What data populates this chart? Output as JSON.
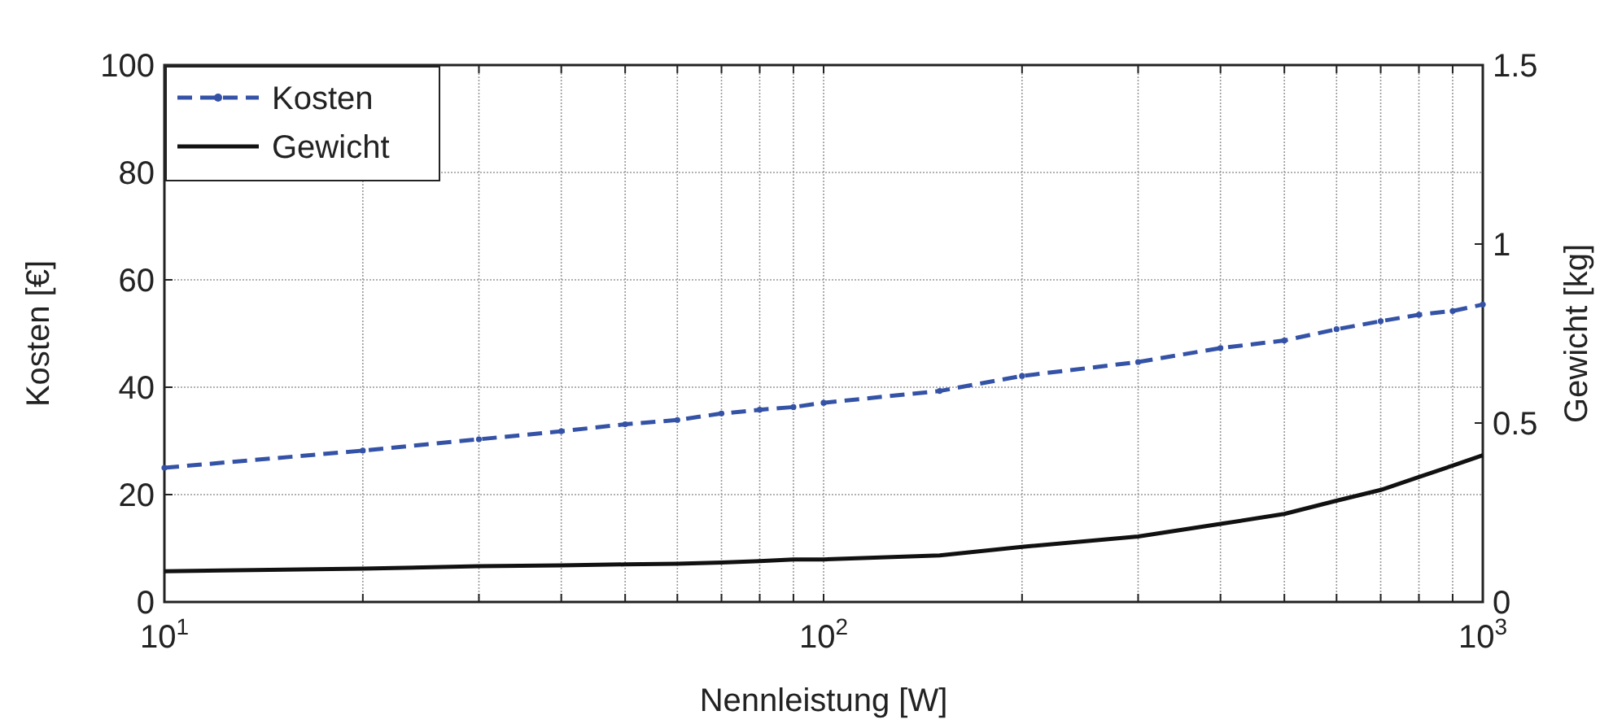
{
  "chart_data": {
    "type": "line",
    "xlabel": "Nennleistung [W]",
    "ylabel": "Kosten [€]",
    "y2label": "Gewicht [kg]",
    "log": "x",
    "grid": true,
    "legend": "top left",
    "xlim": [
      10,
      1000
    ],
    "xticks": [
      {
        "value": 10,
        "label": "10$^{1}$"
      },
      {
        "value": 20,
        "label": null
      },
      {
        "value": 30,
        "label": null
      },
      {
        "value": 40,
        "label": null
      },
      {
        "value": 50,
        "label": null
      },
      {
        "value": 60,
        "label": null
      },
      {
        "value": 70,
        "label": null
      },
      {
        "value": 80,
        "label": null
      },
      {
        "value": 90,
        "label": null
      },
      {
        "value": 100,
        "label": "10$^{2}$"
      },
      {
        "value": 200,
        "label": null
      },
      {
        "value": 300,
        "label": null
      },
      {
        "value": 400,
        "label": null
      },
      {
        "value": 500,
        "label": null
      },
      {
        "value": 600,
        "label": null
      },
      {
        "value": 700,
        "label": null
      },
      {
        "value": 800,
        "label": null
      },
      {
        "value": 900,
        "label": null
      },
      {
        "value": 1000,
        "label": "10$^{3}$"
      }
    ],
    "ylim": [
      0,
      100
    ],
    "yticks": [
      0,
      20,
      40,
      60,
      80,
      100
    ],
    "y2lim": [
      0,
      1.5
    ],
    "y2ticks": [
      0,
      0.5,
      1,
      1.5
    ],
    "x": [
      10,
      20,
      30,
      40,
      50,
      60,
      70,
      80,
      90,
      100,
      150,
      200,
      300,
      400,
      500,
      600,
      700,
      800,
      900,
      1000
    ],
    "series": [
      {
        "name": "Kosten",
        "color": "#3452a6",
        "line_style": "dashed",
        "marker": "circle",
        "values": [
          25.0,
          28.2,
          30.3,
          31.8,
          33.1,
          33.9,
          35.1,
          35.8,
          36.3,
          37.1,
          39.3,
          42.1,
          44.7,
          47.3,
          48.7,
          50.8,
          52.3,
          53.5,
          54.2,
          55.4
        ]
      },
      {
        "name": "Gewicht",
        "color": "#111111",
        "line_style": "solid",
        "marker": "none",
        "axis": "y2",
        "values": [
          0.086,
          0.093,
          0.1,
          0.102,
          0.105,
          0.107,
          0.11,
          0.114,
          0.119,
          0.119,
          0.13,
          0.154,
          0.183,
          0.218,
          0.246,
          0.283,
          0.313,
          0.349,
          0.381,
          0.41
        ]
      }
    ]
  }
}
